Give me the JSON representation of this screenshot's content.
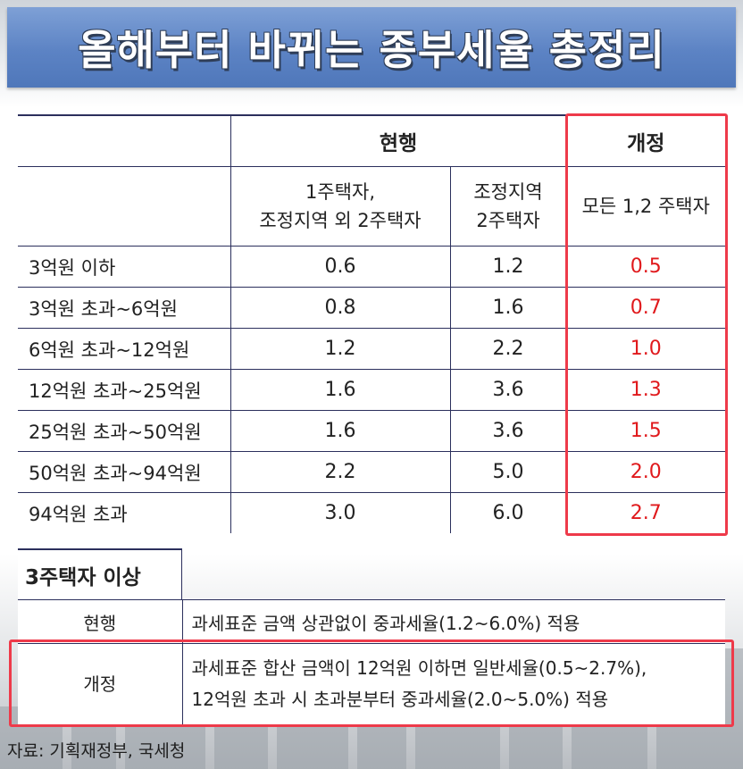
{
  "title": "올해부터 바뀌는 종부세율 총정리",
  "table": {
    "group_current": "현행",
    "group_revised": "개정",
    "col_a": [
      "1주택자,",
      "조정지역 외 2주택자"
    ],
    "col_b": [
      "조정지역",
      "2주택자"
    ],
    "col_c": "모든 1,2 주택자",
    "rows": [
      {
        "label": "3억원 이하",
        "a": "0.6",
        "b": "1.2",
        "c": "0.5"
      },
      {
        "label": "3억원 초과~6억원",
        "a": "0.8",
        "b": "1.6",
        "c": "0.7"
      },
      {
        "label": "6억원 초과~12억원",
        "a": "1.2",
        "b": "2.2",
        "c": "1.0"
      },
      {
        "label": "12억원 초과~25억원",
        "a": "1.6",
        "b": "3.6",
        "c": "1.3"
      },
      {
        "label": "25억원 초과~50억원",
        "a": "1.6",
        "b": "3.6",
        "c": "1.5"
      },
      {
        "label": "50억원 초과~94억원",
        "a": "2.2",
        "b": "5.0",
        "c": "2.0"
      },
      {
        "label": "94억원 초과",
        "a": "3.0",
        "b": "6.0",
        "c": "2.7"
      }
    ]
  },
  "section2": {
    "heading": "3주택자 이상",
    "rows": [
      {
        "key": "현행",
        "lines": [
          "과세표준 금액 상관없이 중과세율(1.2~6.0%) 적용"
        ]
      },
      {
        "key": "개정",
        "lines": [
          "과세표준 합산 금액이 12억원 이하면 일반세율(0.5~2.7%),",
          "12억원 초과 시 초과분부터 중과세율(2.0~5.0%) 적용"
        ]
      }
    ]
  },
  "source": "자료: 기획재정부, 국세청",
  "colors": {
    "highlight": "#ee3a4a",
    "revised_values": "#e0191c",
    "title_bar": "#5c83c4"
  }
}
